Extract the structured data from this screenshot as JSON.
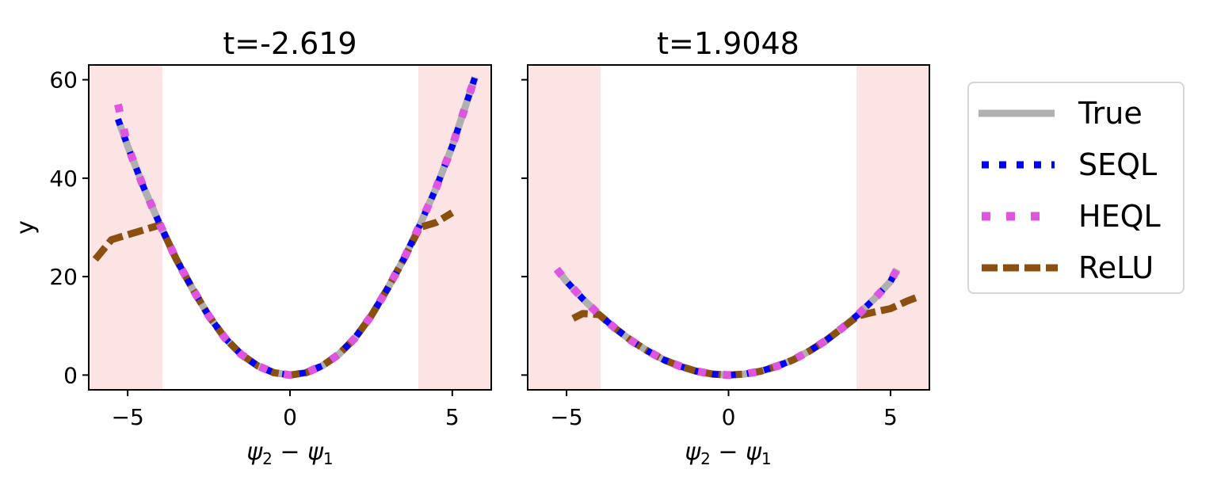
{
  "figure": {
    "ylabel": "y",
    "xlabel": "ψ2 − ψ1"
  },
  "legend": {
    "items": [
      {
        "label": "True",
        "color": "#b0b0b0",
        "style": "solid"
      },
      {
        "label": "SEQL",
        "color": "#0000ff",
        "style": "dotted"
      },
      {
        "label": "HEQL",
        "color": "#e055e0",
        "style": "dotted"
      },
      {
        "label": "ReLU",
        "color": "#8b5010",
        "style": "dashed"
      }
    ]
  },
  "chart_data": [
    {
      "type": "line",
      "title": "t=-2.619",
      "xlabel": "ψ2 − ψ1",
      "ylabel": "y",
      "xlim": [
        -6.2,
        6.2
      ],
      "ylim": [
        -3,
        63
      ],
      "xticks": [
        -5,
        0,
        5
      ],
      "xtick_labels": [
        "−5",
        "0",
        "5"
      ],
      "yticks": [
        0,
        20,
        40,
        60
      ],
      "ytick_labels": [
        "0",
        "20",
        "40",
        "60"
      ],
      "grid": false,
      "shaded_regions": [
        {
          "x": [
            -6.2,
            -4
          ],
          "color": "#fde4e4"
        },
        {
          "x": [
            4,
            6.2
          ],
          "color": "#fde4e4"
        }
      ],
      "x": [
        -5.3,
        -5.0,
        -4.5,
        -4.0,
        -3.5,
        -3.0,
        -2.5,
        -2.0,
        -1.5,
        -1.0,
        -0.5,
        0.0,
        0.5,
        1.0,
        1.5,
        2.0,
        2.5,
        3.0,
        3.5,
        4.0,
        4.5,
        5.0,
        5.5,
        5.7
      ],
      "series": [
        {
          "name": "True",
          "values": [
            52.0,
            46.5,
            38.0,
            30.5,
            23.5,
            17.5,
            12.0,
            7.5,
            4.2,
            1.9,
            0.5,
            0.0,
            0.5,
            1.9,
            4.2,
            7.5,
            12.0,
            17.5,
            23.5,
            30.5,
            38.0,
            46.5,
            56.5,
            60.5
          ]
        },
        {
          "name": "SEQL",
          "values": [
            52.0,
            46.5,
            38.0,
            30.5,
            23.5,
            17.5,
            12.0,
            7.5,
            4.2,
            1.9,
            0.5,
            0.0,
            0.5,
            1.9,
            4.2,
            7.5,
            12.0,
            17.5,
            23.5,
            30.5,
            38.0,
            46.5,
            56.5,
            60.5
          ]
        },
        {
          "name": "HEQL",
          "values": [
            55.0,
            46.5,
            38.0,
            30.5,
            23.5,
            17.5,
            12.0,
            7.5,
            4.2,
            1.9,
            0.5,
            0.0,
            0.5,
            1.9,
            4.2,
            7.5,
            12.0,
            17.5,
            23.5,
            30.5,
            38.0,
            46.5,
            56.5,
            60.5
          ]
        },
        {
          "name": "ReLU",
          "x": [
            -6.0,
            -5.5,
            -5.0,
            -4.5,
            -4.0,
            -3.5,
            -3.0,
            -2.5,
            -2.0,
            -1.5,
            -1.0,
            -0.5,
            0.0,
            0.5,
            1.0,
            1.5,
            2.0,
            2.5,
            3.0,
            3.5,
            4.0,
            4.5,
            5.0
          ],
          "values": [
            23.5,
            27.5,
            28.5,
            29.5,
            30.5,
            23.5,
            17.5,
            12.0,
            7.5,
            4.2,
            1.9,
            0.5,
            0.0,
            0.5,
            1.9,
            4.2,
            7.5,
            12.0,
            17.5,
            23.5,
            30.0,
            31.0,
            33.0
          ]
        }
      ]
    },
    {
      "type": "line",
      "title": "t=1.9048",
      "xlabel": "ψ2 − ψ1",
      "ylabel": "",
      "xlim": [
        -6.2,
        6.2
      ],
      "ylim": [
        -3,
        63
      ],
      "xticks": [
        -5,
        0,
        5
      ],
      "xtick_labels": [
        "−5",
        "0",
        "5"
      ],
      "yticks": [
        0,
        20,
        40,
        60
      ],
      "ytick_labels": [],
      "grid": false,
      "shaded_regions": [
        {
          "x": [
            -6.2,
            -4
          ],
          "color": "#fde4e4"
        },
        {
          "x": [
            4,
            6.2
          ],
          "color": "#fde4e4"
        }
      ],
      "x": [
        -5.3,
        -5.0,
        -4.5,
        -4.0,
        -3.5,
        -3.0,
        -2.5,
        -2.0,
        -1.5,
        -1.0,
        -0.5,
        0.0,
        0.5,
        1.0,
        1.5,
        2.0,
        2.5,
        3.0,
        3.5,
        4.0,
        4.5,
        5.0,
        5.2
      ],
      "series": [
        {
          "name": "True",
          "values": [
            21.5,
            19.0,
            15.5,
            12.3,
            9.5,
            7.0,
            4.9,
            3.1,
            1.8,
            0.8,
            0.2,
            0.0,
            0.2,
            0.8,
            1.8,
            3.1,
            4.9,
            7.0,
            9.5,
            12.3,
            15.5,
            19.0,
            21.5
          ]
        },
        {
          "name": "SEQL",
          "values": [
            21.5,
            19.0,
            15.5,
            12.3,
            9.5,
            7.0,
            4.9,
            3.1,
            1.8,
            0.8,
            0.2,
            0.0,
            0.2,
            0.8,
            1.8,
            3.1,
            4.9,
            7.0,
            9.5,
            12.3,
            15.5,
            19.0,
            21.5
          ]
        },
        {
          "name": "HEQL",
          "values": [
            21.5,
            19.0,
            15.5,
            12.3,
            9.5,
            7.0,
            4.9,
            3.1,
            1.8,
            0.8,
            0.2,
            0.0,
            0.2,
            0.8,
            1.8,
            3.1,
            4.9,
            7.0,
            9.5,
            12.3,
            15.5,
            19.0,
            21.5
          ]
        },
        {
          "name": "ReLU",
          "x": [
            -4.8,
            -4.5,
            -4.0,
            -3.5,
            -3.0,
            -2.5,
            -2.0,
            -1.5,
            -1.0,
            -0.5,
            0.0,
            0.5,
            1.0,
            1.5,
            2.0,
            2.5,
            3.0,
            3.5,
            4.0,
            4.5,
            5.0,
            5.5,
            5.9
          ],
          "values": [
            11.5,
            12.5,
            12.3,
            9.5,
            7.0,
            4.9,
            3.1,
            1.8,
            0.8,
            0.2,
            0.0,
            0.2,
            0.8,
            1.8,
            3.1,
            4.9,
            7.0,
            9.5,
            12.0,
            12.8,
            13.5,
            15.0,
            16.0
          ]
        }
      ]
    }
  ]
}
